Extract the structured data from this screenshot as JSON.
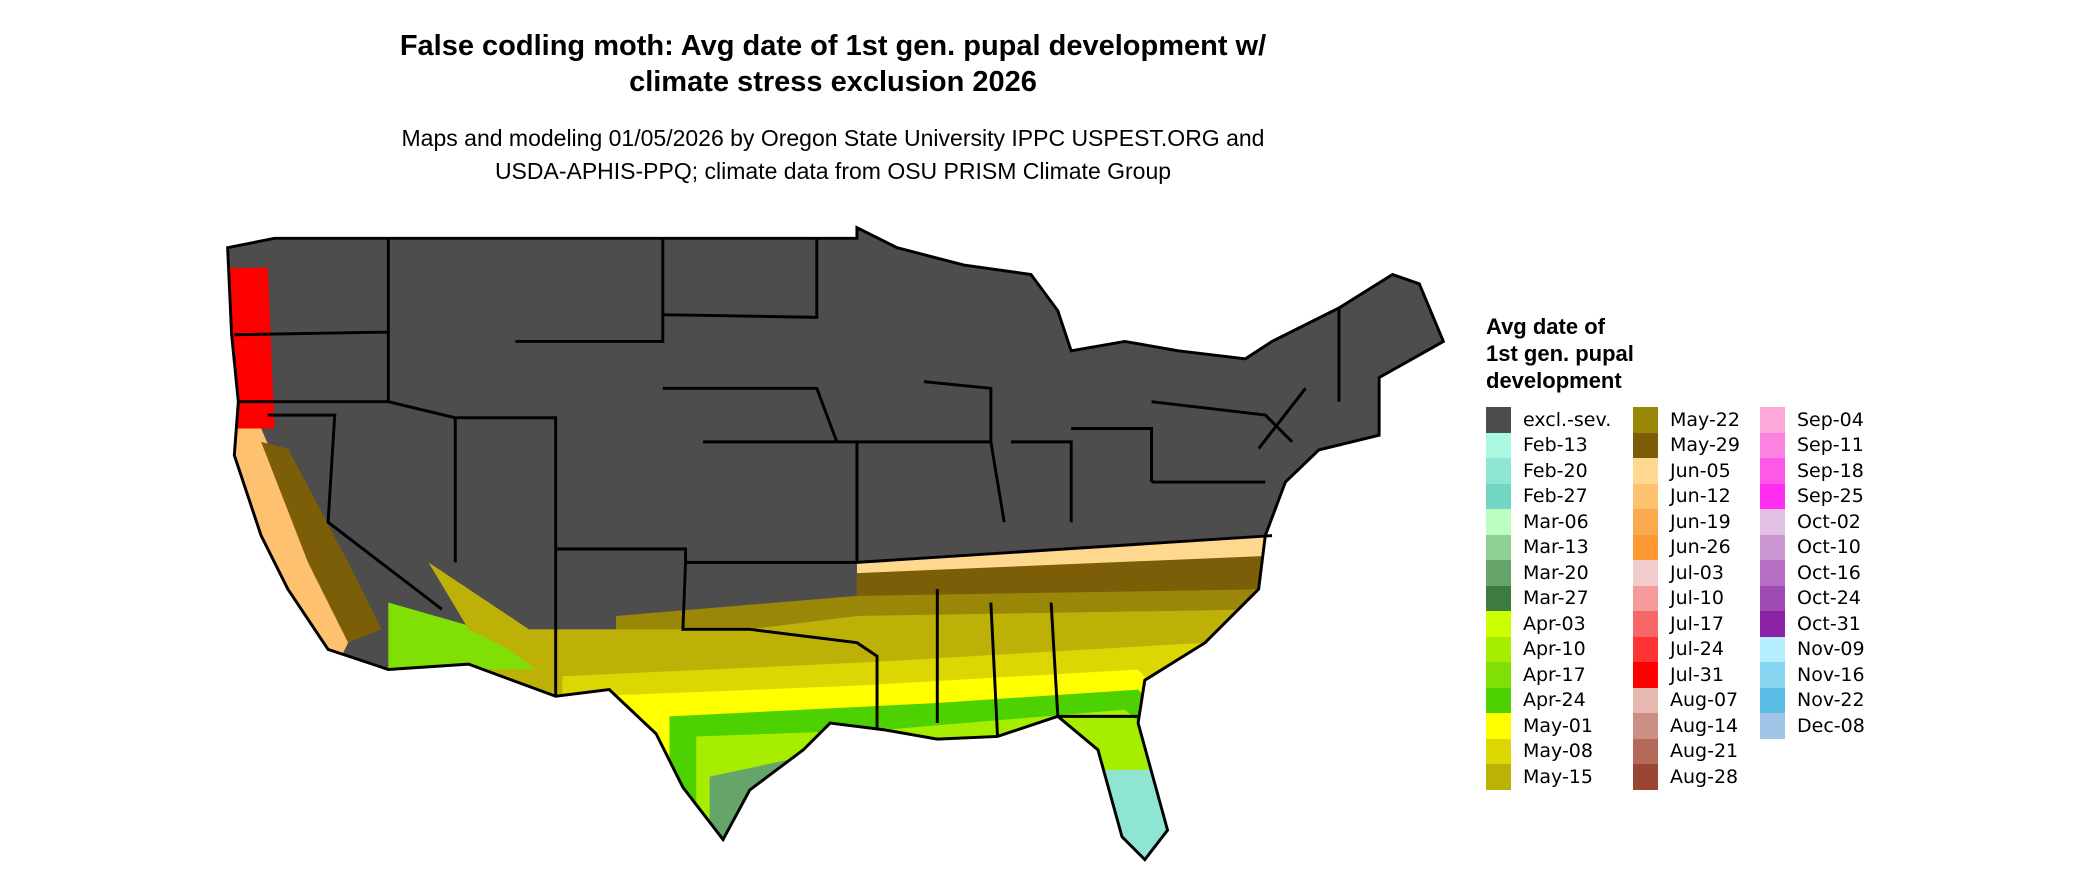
{
  "title": {
    "line1": "False codling moth: Avg date of 1st gen. pupal development w/",
    "line2": "climate stress exclusion 2026"
  },
  "subtitle": {
    "line1": "Maps and modeling 01/05/2026 by Oregon State University IPPC USPEST.ORG and",
    "line2": "USDA-APHIS-PPQ; climate data from OSU PRISM Climate Group"
  },
  "legend": {
    "title_lines": [
      "Avg date of",
      "1st gen. pupal",
      "development"
    ],
    "items": [
      {
        "label": "excl.-sev.",
        "color": "#4d4d4d"
      },
      {
        "label": "Feb-13",
        "color": "#aaf7e2"
      },
      {
        "label": "Feb-20",
        "color": "#8ee6d2"
      },
      {
        "label": "Feb-27",
        "color": "#72d6c4"
      },
      {
        "label": "Mar-06",
        "color": "#baffc0"
      },
      {
        "label": "Mar-13",
        "color": "#8fd192"
      },
      {
        "label": "Mar-20",
        "color": "#65a56a"
      },
      {
        "label": "Mar-27",
        "color": "#3d7b3e"
      },
      {
        "label": "Apr-03",
        "color": "#ccff00"
      },
      {
        "label": "Apr-10",
        "color": "#a6ed00"
      },
      {
        "label": "Apr-17",
        "color": "#80e005"
      },
      {
        "label": "Apr-24",
        "color": "#4ed100"
      },
      {
        "label": "May-01",
        "color": "#ffff00"
      },
      {
        "label": "May-08",
        "color": "#dcd703"
      },
      {
        "label": "May-15",
        "color": "#bdb107"
      },
      {
        "label": "May-22",
        "color": "#9b8707"
      },
      {
        "label": "May-29",
        "color": "#7b5e07"
      },
      {
        "label": "Jun-05",
        "color": "#fed88f"
      },
      {
        "label": "Jun-12",
        "color": "#fdc170"
      },
      {
        "label": "Jun-19",
        "color": "#fbaa50"
      },
      {
        "label": "Jun-26",
        "color": "#fd9833"
      },
      {
        "label": "Jul-03",
        "color": "#f3cdcd"
      },
      {
        "label": "Jul-10",
        "color": "#f59b9b"
      },
      {
        "label": "Jul-17",
        "color": "#f76767"
      },
      {
        "label": "Jul-24",
        "color": "#fe3333"
      },
      {
        "label": "Jul-31",
        "color": "#ff0000"
      },
      {
        "label": "Aug-07",
        "color": "#e6b8b0"
      },
      {
        "label": "Aug-14",
        "color": "#cb8f84"
      },
      {
        "label": "Aug-21",
        "color": "#b36a5b"
      },
      {
        "label": "Aug-28",
        "color": "#9b4533"
      },
      {
        "label": "Sep-04",
        "color": "#fdaad8"
      },
      {
        "label": "Sep-11",
        "color": "#fd82df"
      },
      {
        "label": "Sep-18",
        "color": "#fe58e6"
      },
      {
        "label": "Sep-25",
        "color": "#ff2ef0"
      },
      {
        "label": "Oct-02",
        "color": "#e2bfe5"
      },
      {
        "label": "Oct-10",
        "color": "#cb96d2"
      },
      {
        "label": "Oct-16",
        "color": "#b56ec3"
      },
      {
        "label": "Oct-24",
        "color": "#a04cb4"
      },
      {
        "label": "Oct-31",
        "color": "#8c22a6"
      },
      {
        "label": "Nov-09",
        "color": "#b5eefe"
      },
      {
        "label": "Nov-16",
        "color": "#88d6f2"
      },
      {
        "label": "Nov-22",
        "color": "#5abde6"
      },
      {
        "label": "Dec-08",
        "color": "#a0c4e6"
      }
    ]
  }
}
